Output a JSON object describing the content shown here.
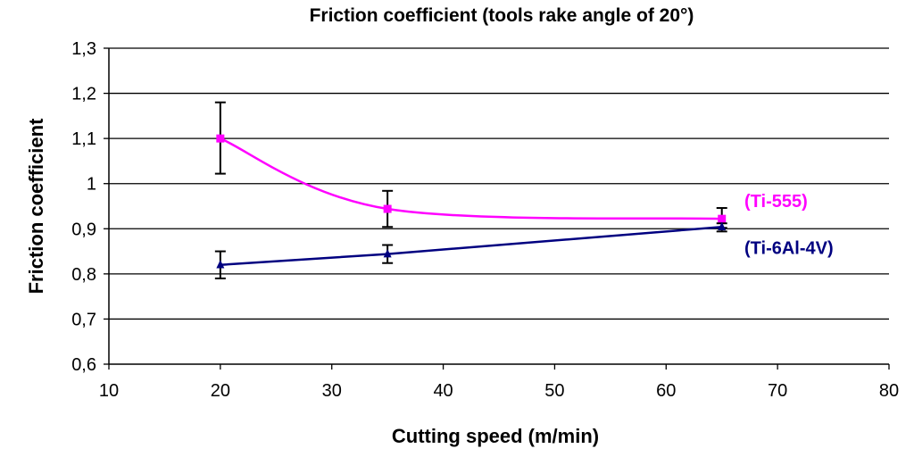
{
  "chart_data": {
    "type": "line",
    "title": "Friction coefficient (tools rake angle of 20°)",
    "xlabel": "Cutting speed (m/min)",
    "ylabel": "Friction coefficient",
    "xlim": [
      10,
      80
    ],
    "ylim": [
      0.6,
      1.3
    ],
    "x_ticks": [
      10,
      20,
      30,
      40,
      50,
      60,
      70,
      80
    ],
    "x_tick_labels": [
      "10",
      "20",
      "30",
      "40",
      "50",
      "60",
      "70",
      "80"
    ],
    "y_ticks": [
      0.6,
      0.7,
      0.8,
      0.9,
      1.0,
      1.1,
      1.2,
      1.3
    ],
    "y_tick_labels": [
      "0,6",
      "0,7",
      "0,8",
      "0,9",
      "1",
      "1,1",
      "1,2",
      "1,3"
    ],
    "grid": "horizontal",
    "series": [
      {
        "name": "(Ti-555)",
        "color": "#ff00ff",
        "marker": "square",
        "smooth": true,
        "x": [
          20,
          35,
          65
        ],
        "y": [
          1.1,
          0.944,
          0.922
        ],
        "err_low": [
          1.022,
          0.904,
          0.902
        ],
        "err_high": [
          1.18,
          0.984,
          0.946
        ]
      },
      {
        "name": "(Ti-6Al-4V)",
        "color": "#000080",
        "marker": "triangle",
        "smooth": false,
        "x": [
          20,
          35,
          65
        ],
        "y": [
          0.82,
          0.844,
          0.904
        ],
        "err_low": [
          0.79,
          0.824,
          0.894
        ],
        "err_high": [
          0.85,
          0.864,
          0.912
        ]
      }
    ]
  }
}
